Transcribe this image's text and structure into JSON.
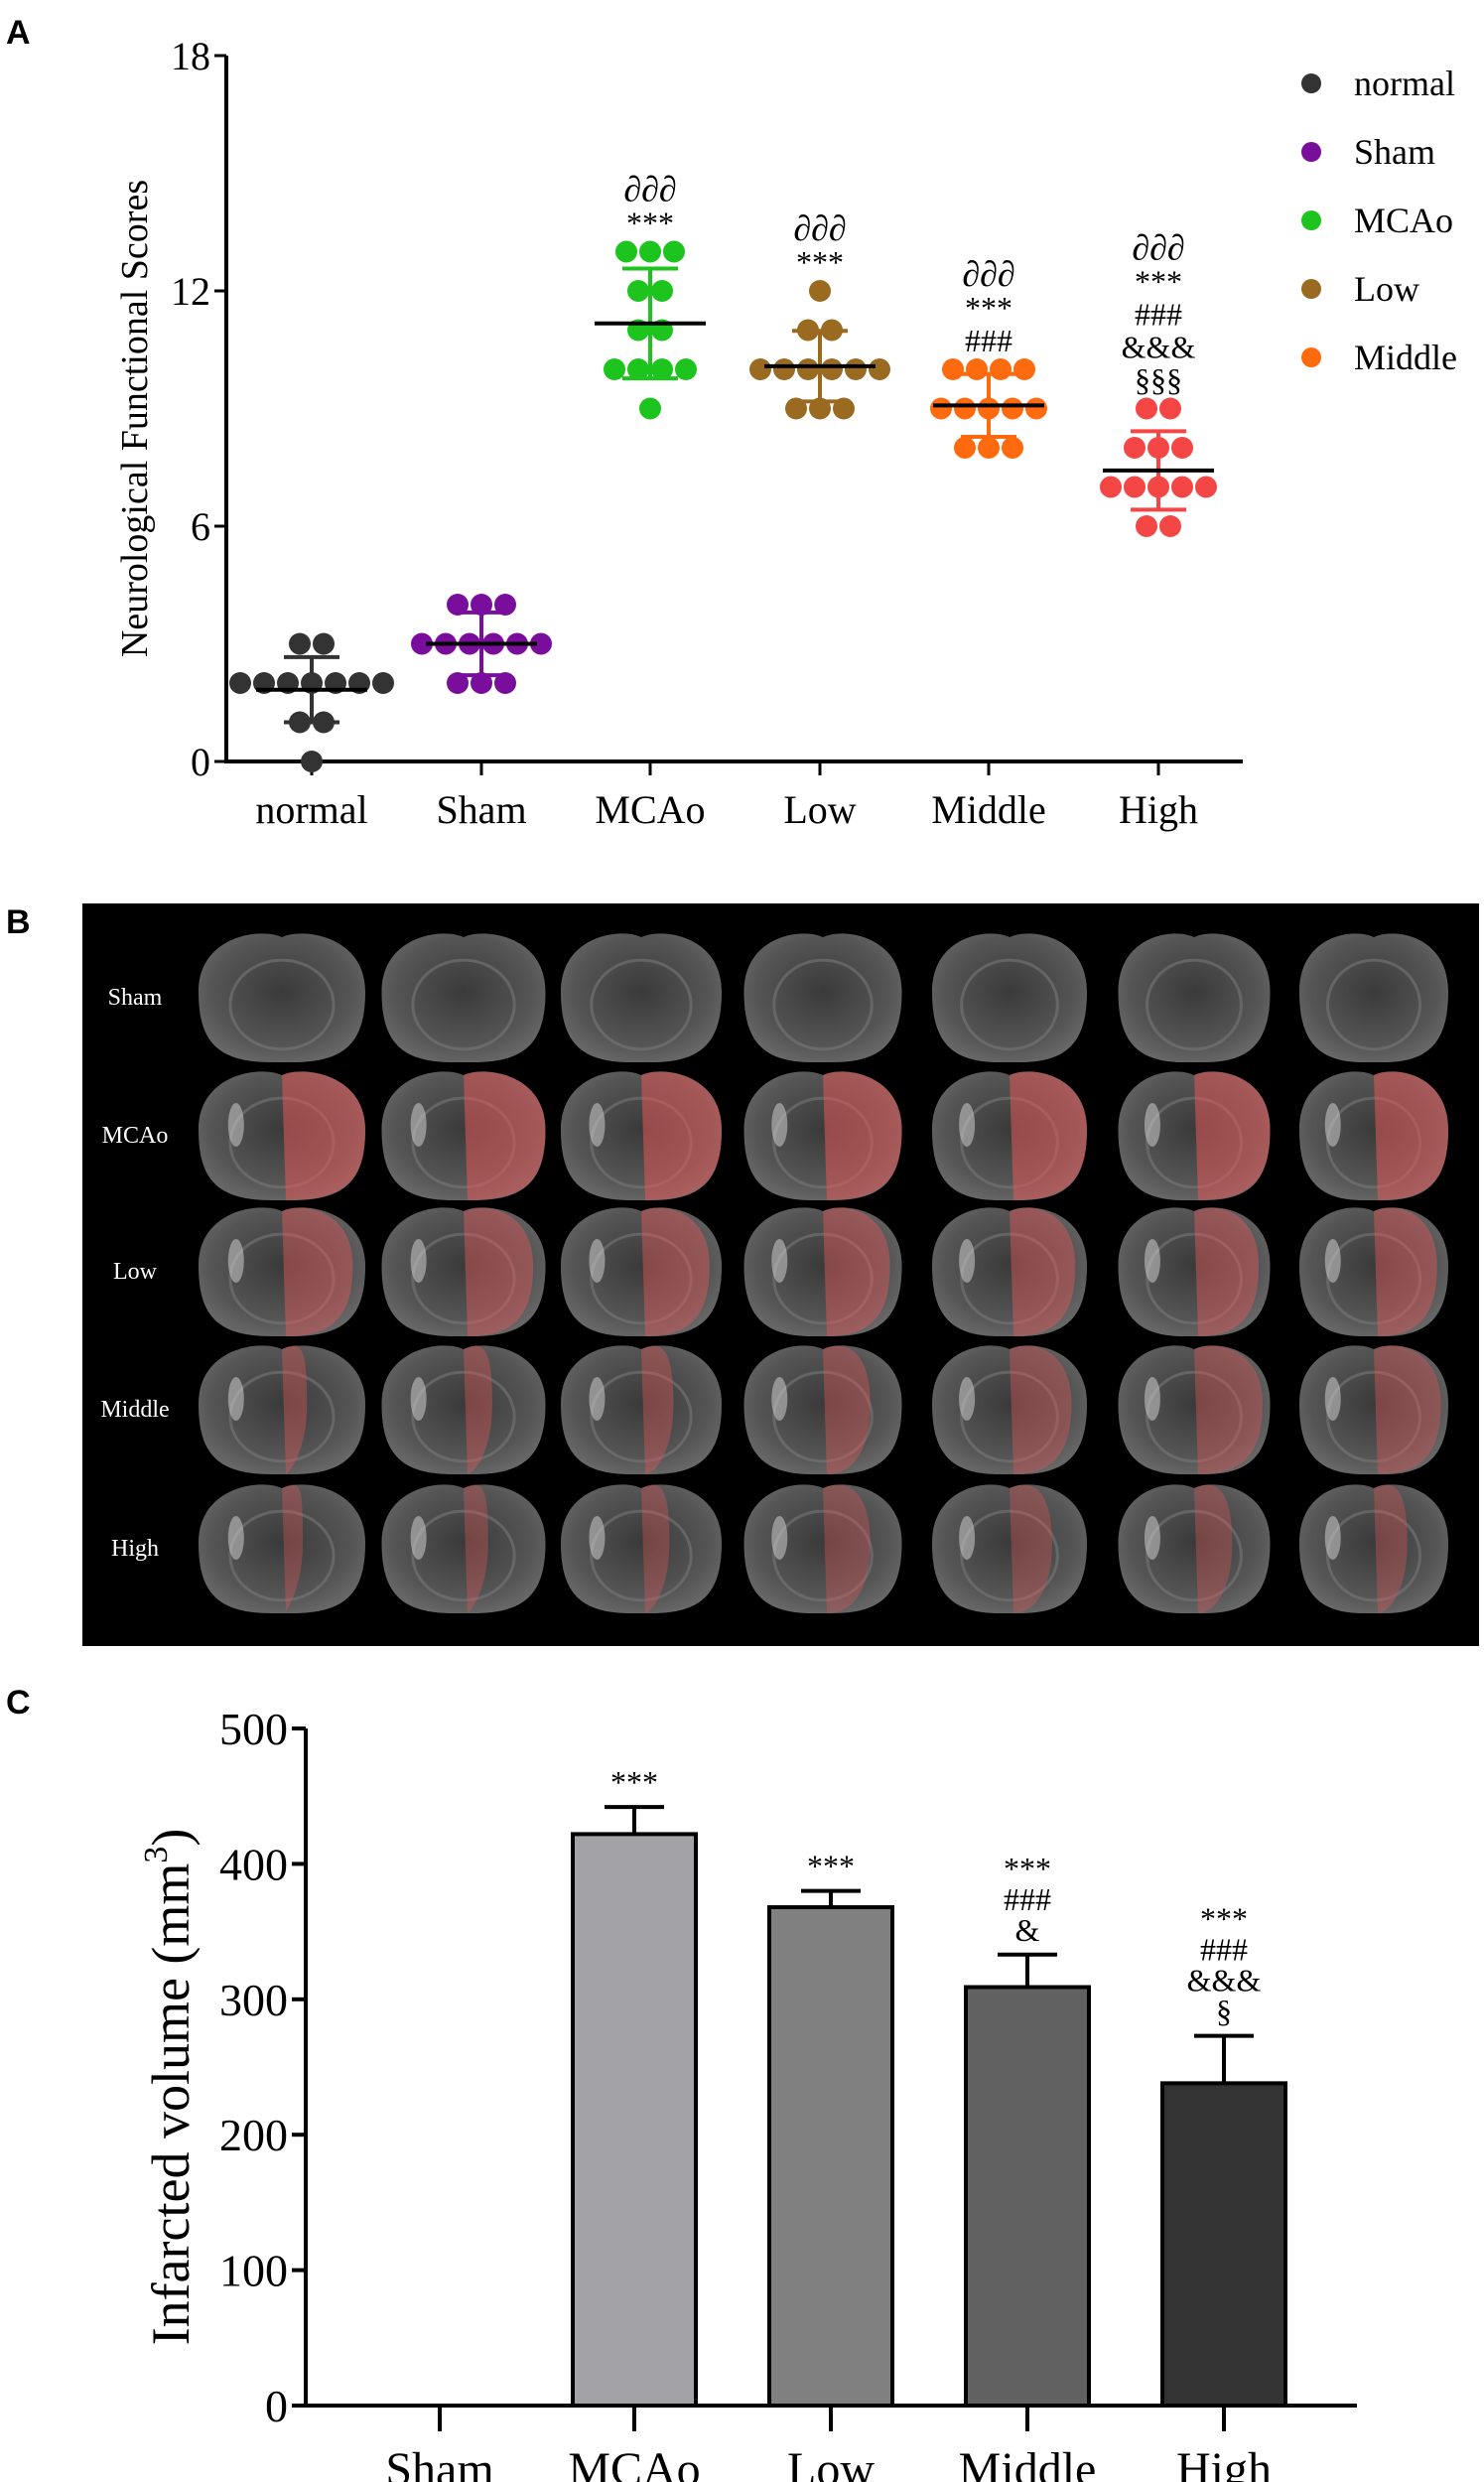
{
  "panels": {
    "a": "A",
    "b": "B",
    "c": "C"
  },
  "chart_data": [
    {
      "type": "scatter",
      "panel": "A",
      "ylabel": "Neurological Functional Scores",
      "xlabel": "",
      "ylim": [
        0,
        18
      ],
      "yticks": [
        0,
        6,
        12,
        18
      ],
      "categories": [
        "normal",
        "Sham",
        "MCAo",
        "Low",
        "Middle",
        "High"
      ],
      "legend": {
        "placement": "top-right",
        "entries": [
          "normal",
          "Sham",
          "MCAo",
          "Low",
          "Middle"
        ]
      },
      "series": [
        {
          "name": "normal",
          "color": "#333333",
          "values": [
            3,
            3,
            2,
            2,
            2,
            2,
            2,
            2,
            2,
            1,
            1,
            0
          ],
          "mean": 1.83,
          "sd": 0.83,
          "annotations": []
        },
        {
          "name": "Sham",
          "color": "#7a0e9c",
          "values": [
            4,
            4,
            4,
            3,
            3,
            3,
            3,
            3,
            3,
            2,
            2,
            2
          ],
          "mean": 3.0,
          "sd": 0.8,
          "annotations": []
        },
        {
          "name": "MCAo",
          "color": "#1ec41e",
          "values": [
            13,
            13,
            13,
            12,
            12,
            11,
            11,
            10,
            10,
            10,
            10,
            9
          ],
          "mean": 11.17,
          "sd": 1.4,
          "annotations": [
            "∂∂∂",
            "***"
          ]
        },
        {
          "name": "Low",
          "color": "#9b6a21",
          "values": [
            12,
            11,
            11,
            10,
            10,
            10,
            10,
            10,
            10,
            9,
            9,
            9
          ],
          "mean": 10.08,
          "sd": 0.9,
          "annotations": [
            "∂∂∂",
            "***"
          ]
        },
        {
          "name": "Middle",
          "color": "#ff6a0e",
          "values": [
            10,
            10,
            10,
            10,
            9,
            9,
            9,
            9,
            9,
            8,
            8,
            8
          ],
          "mean": 9.08,
          "sd": 0.8,
          "annotations": [
            "∂∂∂",
            "***",
            "###"
          ]
        },
        {
          "name": "High",
          "color": "#f54646",
          "values": [
            9,
            9,
            8,
            8,
            8,
            7,
            7,
            7,
            7,
            7,
            6,
            6
          ],
          "mean": 7.42,
          "sd": 1.0,
          "annotations": [
            "∂∂∂",
            "***",
            "###",
            "&&&",
            "§§§"
          ]
        }
      ]
    },
    {
      "type": "image-grid",
      "panel": "B",
      "row_labels": [
        "Sham",
        "MCAo",
        "Low",
        "Middle",
        "High"
      ],
      "columns": 7
    },
    {
      "type": "bar",
      "panel": "C",
      "ylabel": "Infarcted volume (mm",
      "ylabel_sup": "3",
      "ylabel_close": ")",
      "xlabel": "",
      "ylim": [
        0,
        500
      ],
      "yticks": [
        0,
        100,
        200,
        300,
        400,
        500
      ],
      "categories": [
        "Sham",
        "MCAo",
        "Low",
        "Middle",
        "High"
      ],
      "values": [
        0,
        422,
        368,
        309,
        238
      ],
      "errors": [
        0,
        20,
        12,
        24,
        35
      ],
      "colors": [
        "#ffffff",
        "#a3a3a7",
        "#808080",
        "#616161",
        "#333333"
      ],
      "annotations": [
        [],
        [
          "***"
        ],
        [
          "***"
        ],
        [
          "***",
          "###",
          "&"
        ],
        [
          "***",
          "###",
          "&&&",
          "§"
        ]
      ]
    }
  ]
}
